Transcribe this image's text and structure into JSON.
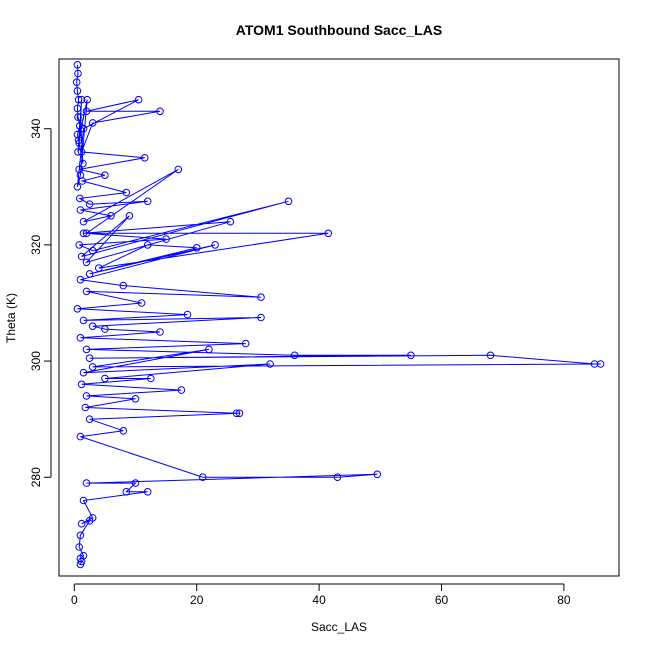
{
  "chart_data": {
    "type": "scatter",
    "title": "ATOM1 Southbound Sacc_LAS",
    "xlabel": "Sacc_LAS",
    "ylabel": "Theta (K)",
    "xlim": [
      -2.5,
      89
    ],
    "ylim": [
      263,
      352
    ],
    "xticks": [
      "0",
      "20",
      "40",
      "60",
      "80"
    ],
    "yticks": [
      "280",
      "300",
      "320",
      "340"
    ],
    "grid": false,
    "legend": "none",
    "markers": "open-circles",
    "connect_points": true,
    "color": "#0000ff",
    "series": [
      {
        "x": [
          0.5,
          0.6,
          0.4,
          0.5,
          0.7,
          0.5,
          0.6,
          0.9,
          0.5,
          0.8,
          1.2,
          0.6,
          1.0,
          1.4,
          0.7,
          2.1,
          1.0,
          0.5,
          1.5,
          10.5,
          2.0,
          14.0,
          3.0,
          1.2,
          11.5,
          0.8,
          5.0,
          1.3,
          8.5,
          0.9,
          2.5,
          12.0,
          1.0,
          6.0,
          1.5,
          17.0,
          2.0,
          15.0,
          0.8,
          3.0,
          35.0,
          1.2,
          9.0,
          2.0,
          25.5,
          1.5,
          41.5,
          4.0,
          12.0,
          20.0,
          2.5,
          23.0,
          1.0,
          8.0,
          30.5,
          2.0,
          11.0,
          0.5,
          18.5,
          1.5,
          30.5,
          3.0,
          5.0,
          14.0,
          1.0,
          28.0,
          2.0,
          36.0,
          55.0,
          2.5,
          68.0,
          85.0,
          86.0,
          3.0,
          22.0,
          1.5,
          32.0,
          5.0,
          12.5,
          1.2,
          17.5,
          2.0,
          10.0,
          1.8,
          26.5,
          27.0,
          2.5,
          8.0,
          1.0,
          21.0,
          43.0,
          49.5,
          2.0,
          10.0,
          8.5,
          12.0,
          1.5,
          3.0,
          1.2,
          2.5,
          1.0,
          0.8,
          1.5,
          1.0,
          1.2,
          1.0
        ],
        "y": [
          351.0,
          349.5,
          348.0,
          346.5,
          345.0,
          343.5,
          342.0,
          340.5,
          339.0,
          337.5,
          345.0,
          336.0,
          342.0,
          334.0,
          338.0,
          345.0,
          332.0,
          330.0,
          340.0,
          345.0,
          343.0,
          343.0,
          341.0,
          336.0,
          335.0,
          333.0,
          332.0,
          331.0,
          329.0,
          328.0,
          327.0,
          327.5,
          326.0,
          325.0,
          324.0,
          333.0,
          322.0,
          321.0,
          320.0,
          319.0,
          327.5,
          318.0,
          325.0,
          317.0,
          324.0,
          322.0,
          322.0,
          316.0,
          320.0,
          319.5,
          315.0,
          320.0,
          314.0,
          313.0,
          311.0,
          312.0,
          310.0,
          309.0,
          308.0,
          307.0,
          307.5,
          306.0,
          305.5,
          305.0,
          304.0,
          303.0,
          302.0,
          301.0,
          301.0,
          300.5,
          301.0,
          299.5,
          299.5,
          299.0,
          302.0,
          298.0,
          299.5,
          297.0,
          297.0,
          296.0,
          295.0,
          294.0,
          293.5,
          292.0,
          291.0,
          291.0,
          290.0,
          288.0,
          287.0,
          280.0,
          280.0,
          280.5,
          279.0,
          279.0,
          277.5,
          277.5,
          276.0,
          273.0,
          272.0,
          272.5,
          270.0,
          268.0,
          266.5,
          266.0,
          265.5,
          265.0
        ]
      }
    ]
  }
}
